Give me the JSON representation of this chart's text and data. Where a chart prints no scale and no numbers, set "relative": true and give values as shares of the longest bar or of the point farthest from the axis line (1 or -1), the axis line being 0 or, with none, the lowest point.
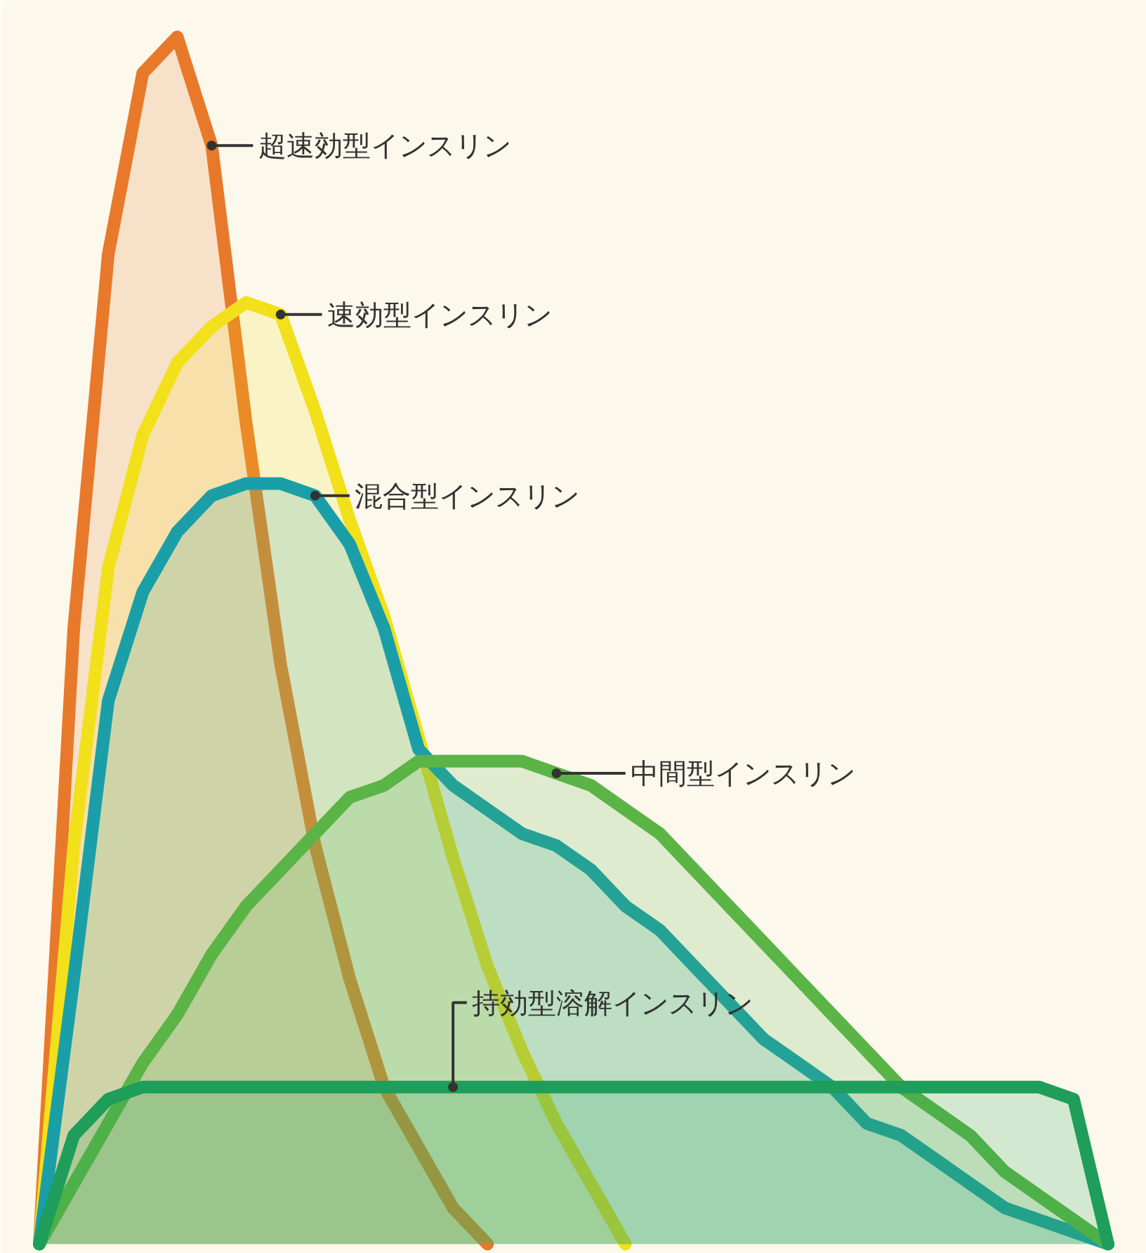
{
  "chart_data": {
    "type": "area",
    "relative": true,
    "grid": false,
    "legend": "top right",
    "categories": [
      null,
      null,
      null,
      null,
      null,
      null,
      null,
      null,
      null,
      null,
      null,
      null,
      null,
      null,
      null,
      null,
      null,
      null,
      null,
      null,
      null,
      null,
      null,
      null,
      null,
      null,
      null,
      null,
      null,
      null,
      null,
      null
    ],
    "series": [
      {
        "name": "超速効型インスリン",
        "color": "#e8792a",
        "values": [
          0,
          0.51,
          0.82,
          0.97,
          1.0,
          0.91,
          0.68,
          0.48,
          0.33,
          0.22,
          0.13,
          0.08,
          0.03,
          0,
          null,
          null,
          null,
          null,
          null,
          null,
          null,
          null,
          null,
          null,
          null,
          null,
          null,
          null,
          null,
          null,
          null,
          null
        ]
      },
      {
        "name": "速効型インスリン",
        "color": "#f2e01a",
        "values": [
          0,
          0.33,
          0.56,
          0.67,
          0.73,
          0.76,
          0.78,
          0.77,
          0.69,
          0.6,
          0.52,
          0.42,
          0.32,
          0.23,
          0.16,
          0.1,
          0.05,
          0,
          null,
          null,
          null,
          null,
          null,
          null,
          null,
          null,
          null,
          null,
          null,
          null,
          null,
          null
        ]
      },
      {
        "name": "混合型インスリン",
        "color": "#1a9fa8",
        "values": [
          0,
          0.22,
          0.45,
          0.54,
          0.59,
          0.62,
          0.63,
          0.63,
          0.62,
          0.58,
          0.51,
          0.41,
          0.38,
          0.36,
          0.34,
          0.33,
          0.31,
          0.28,
          0.26,
          0.23,
          0.2,
          0.17,
          0.15,
          0.13,
          0.1,
          0.09,
          0.07,
          0.05,
          0.03,
          0.02,
          0.01,
          0
        ]
      },
      {
        "name": "中間型インスリン",
        "color": "#5ab446",
        "values": [
          0,
          0.05,
          0.1,
          0.15,
          0.19,
          0.24,
          0.28,
          0.31,
          0.34,
          0.37,
          0.38,
          0.4,
          0.4,
          0.4,
          0.4,
          0.39,
          0.38,
          0.36,
          0.34,
          0.31,
          0.28,
          0.25,
          0.22,
          0.19,
          0.16,
          0.13,
          0.11,
          0.09,
          0.06,
          0.04,
          0.02,
          0
        ]
      },
      {
        "name": "持効型溶解インスリン",
        "color": "#1e9e5a",
        "values": [
          0,
          0.09,
          0.12,
          0.13,
          0.13,
          0.13,
          0.13,
          0.13,
          0.13,
          0.13,
          0.13,
          0.13,
          0.13,
          0.13,
          0.13,
          0.13,
          0.13,
          0.13,
          0.13,
          0.13,
          0.13,
          0.13,
          0.13,
          0.13,
          0.13,
          0.13,
          0.13,
          0.13,
          0.13,
          0.13,
          0.12,
          0
        ]
      }
    ]
  }
}
